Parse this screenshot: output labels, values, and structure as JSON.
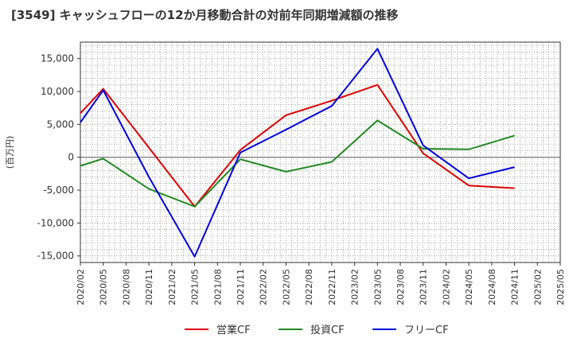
{
  "chart_data": {
    "type": "line",
    "title": "[3549]  キャッシュフローの12か月移動合計の対前年同期増減額の推移",
    "ylabel": "(百万円)",
    "xlabel": "",
    "x": [
      "2020/02",
      "2020/05",
      "2020/08",
      "2020/11",
      "2021/02",
      "2021/05",
      "2021/08",
      "2021/11",
      "2022/02",
      "2022/05",
      "2022/08",
      "2022/11",
      "2023/02",
      "2023/05",
      "2023/08",
      "2023/11",
      "2024/02",
      "2024/05",
      "2024/08",
      "2024/11",
      "2025/02",
      "2025/05"
    ],
    "ylim": [
      -16000,
      17500
    ],
    "yticks": [
      15000,
      10000,
      5000,
      0,
      -5000,
      -10000,
      -15000
    ],
    "ytick_labels": [
      "15,000",
      "10,000",
      "5,000",
      "0",
      "-5,000",
      "-10,000",
      "-15,000"
    ],
    "grid": true,
    "legend_position": "bottom",
    "series": [
      {
        "name": "営業CF",
        "color": "#dd0000",
        "points": [
          [
            "2020/02",
            6700
          ],
          [
            "2020/05",
            10400
          ],
          [
            "2021/05",
            -7500
          ],
          [
            "2021/11",
            1100
          ],
          [
            "2022/05",
            6400
          ],
          [
            "2022/11",
            8600
          ],
          [
            "2023/05",
            11000
          ],
          [
            "2023/11",
            600
          ],
          [
            "2024/05",
            -4300
          ],
          [
            "2024/11",
            -4700
          ]
        ]
      },
      {
        "name": "投資CF",
        "color": "#228822",
        "points": [
          [
            "2020/02",
            -1300
          ],
          [
            "2020/05",
            -200
          ],
          [
            "2020/11",
            -4800
          ],
          [
            "2021/05",
            -7500
          ],
          [
            "2021/11",
            -300
          ],
          [
            "2022/05",
            -2200
          ],
          [
            "2022/11",
            -700
          ],
          [
            "2023/05",
            5600
          ],
          [
            "2023/11",
            1300
          ],
          [
            "2024/05",
            1200
          ],
          [
            "2024/11",
            3300
          ]
        ]
      },
      {
        "name": "フリーCF",
        "color": "#0000dd",
        "points": [
          [
            "2020/02",
            5300
          ],
          [
            "2020/05",
            10200
          ],
          [
            "2020/11",
            -3000
          ],
          [
            "2021/05",
            -15100
          ],
          [
            "2021/11",
            700
          ],
          [
            "2022/05",
            4200
          ],
          [
            "2022/11",
            7800
          ],
          [
            "2023/05",
            16500
          ],
          [
            "2023/11",
            1800
          ],
          [
            "2024/05",
            -3200
          ],
          [
            "2024/11",
            -1500
          ]
        ]
      }
    ]
  }
}
